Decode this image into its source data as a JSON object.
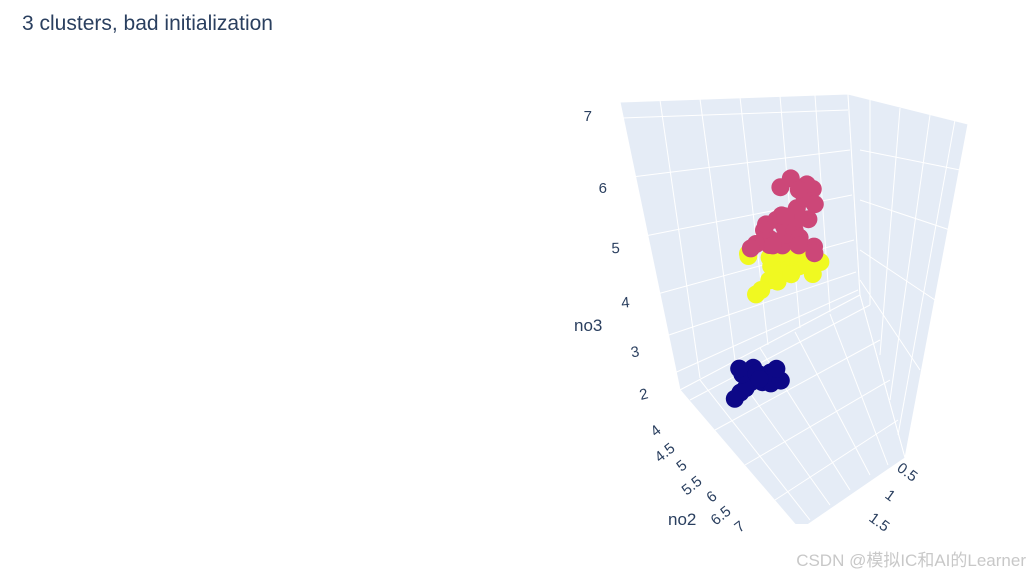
{
  "title": "3 clusters, bad initialization",
  "watermark": "CSDN @模拟IC和AI的Learner",
  "chart_data": {
    "type": "scatter",
    "dimensions": "3d",
    "title": "3 clusters, bad initialization",
    "axes": {
      "z": {
        "label": "no3",
        "ticks": [
          "2",
          "3",
          "4",
          "5",
          "6",
          "7"
        ]
      },
      "y": {
        "label": "no2",
        "ticks": [
          "4",
          "4.5",
          "5",
          "5.5",
          "6",
          "6.5",
          "7"
        ]
      },
      "x": {
        "label": "",
        "ticks": [
          "0.5",
          "1",
          "1.5"
        ]
      }
    },
    "legend": "none",
    "grid": true,
    "colors": {
      "cluster_a": "#0d0887",
      "cluster_b": "#cc4778",
      "cluster_c": "#f0f921",
      "scene_bg": "#e5ecf6",
      "text": "#2a3f5f"
    },
    "series": [
      {
        "color": "cluster_c",
        "points": [
          [
            1.5,
            5.0,
            4.4
          ],
          [
            1.6,
            5.1,
            4.5
          ],
          [
            1.4,
            4.9,
            4.3
          ],
          [
            1.7,
            5.2,
            4.6
          ],
          [
            1.3,
            4.8,
            4.2
          ],
          [
            1.5,
            5.3,
            4.5
          ],
          [
            1.6,
            5.4,
            4.4
          ],
          [
            1.8,
            5.0,
            4.7
          ],
          [
            1.4,
            5.2,
            4.3
          ],
          [
            1.5,
            4.7,
            4.6
          ],
          [
            1.7,
            5.5,
            4.5
          ],
          [
            1.6,
            5.6,
            4.4
          ],
          [
            1.3,
            5.1,
            4.1
          ],
          [
            1.9,
            5.3,
            4.8
          ],
          [
            1.5,
            5.7,
            4.6
          ],
          [
            1.2,
            4.6,
            4.0
          ],
          [
            1.8,
            5.8,
            4.7
          ],
          [
            1.4,
            5.5,
            4.2
          ],
          [
            1.6,
            5.9,
            4.5
          ],
          [
            1.7,
            4.9,
            4.9
          ],
          [
            1.1,
            4.5,
            3.9
          ],
          [
            1.5,
            6.0,
            4.3
          ],
          [
            1.9,
            5.6,
            4.6
          ],
          [
            0.9,
            4.4,
            4.8
          ],
          [
            1.0,
            4.3,
            4.9
          ],
          [
            1.6,
            6.1,
            4.1
          ],
          [
            1.2,
            4.9,
            4.7
          ],
          [
            1.8,
            6.2,
            4.4
          ]
        ]
      },
      {
        "color": "cluster_b",
        "points": [
          [
            1.2,
            4.9,
            5.0
          ],
          [
            1.4,
            5.0,
            5.1
          ],
          [
            1.3,
            4.8,
            5.2
          ],
          [
            1.5,
            5.1,
            5.0
          ],
          [
            1.6,
            5.2,
            5.3
          ],
          [
            1.2,
            4.7,
            5.4
          ],
          [
            1.7,
            5.0,
            5.5
          ],
          [
            1.5,
            5.3,
            5.2
          ],
          [
            1.4,
            4.6,
            5.6
          ],
          [
            1.8,
            5.4,
            5.0
          ],
          [
            1.6,
            4.8,
            5.7
          ],
          [
            1.3,
            5.5,
            5.3
          ],
          [
            1.9,
            5.2,
            5.4
          ],
          [
            1.1,
            4.5,
            5.1
          ],
          [
            2.0,
            5.6,
            5.6
          ],
          [
            1.7,
            4.9,
            5.8
          ],
          [
            1.0,
            4.4,
            5.0
          ],
          [
            1.5,
            5.7,
            5.5
          ],
          [
            2.1,
            5.1,
            6.0
          ],
          [
            2.2,
            5.3,
            6.2
          ],
          [
            2.3,
            5.5,
            6.4
          ],
          [
            2.4,
            5.2,
            6.6
          ],
          [
            2.2,
            4.8,
            6.8
          ],
          [
            2.0,
            4.6,
            6.6
          ],
          [
            2.3,
            5.0,
            6.5
          ],
          [
            2.5,
            5.4,
            6.1
          ],
          [
            2.1,
            4.7,
            5.9
          ],
          [
            1.8,
            4.5,
            5.2
          ],
          [
            2.0,
            5.8,
            4.9
          ],
          [
            1.9,
            5.9,
            4.7
          ],
          [
            1.4,
            5.8,
            5.0
          ],
          [
            1.6,
            5.6,
            4.9
          ]
        ]
      },
      {
        "color": "cluster_a",
        "points": [
          [
            0.2,
            5.0,
            1.5
          ],
          [
            0.3,
            5.1,
            1.6
          ],
          [
            0.2,
            4.9,
            1.4
          ],
          [
            0.4,
            5.2,
            1.7
          ],
          [
            0.1,
            4.8,
            1.3
          ],
          [
            0.2,
            5.3,
            1.5
          ],
          [
            0.3,
            5.4,
            1.6
          ],
          [
            0.2,
            5.5,
            1.4
          ],
          [
            0.4,
            5.0,
            1.9
          ],
          [
            0.1,
            5.6,
            1.5
          ],
          [
            0.3,
            5.7,
            1.6
          ],
          [
            0.2,
            5.8,
            1.3
          ],
          [
            0.2,
            5.1,
            1.5
          ],
          [
            0.3,
            4.7,
            1.8
          ],
          [
            0.5,
            5.9,
            1.4
          ],
          [
            0.2,
            6.0,
            1.6
          ],
          [
            0.1,
            4.6,
            1.2
          ],
          [
            0.3,
            5.2,
            1.7
          ],
          [
            0.2,
            5.4,
            1.5
          ],
          [
            0.4,
            4.5,
            2.0
          ]
        ]
      }
    ]
  }
}
